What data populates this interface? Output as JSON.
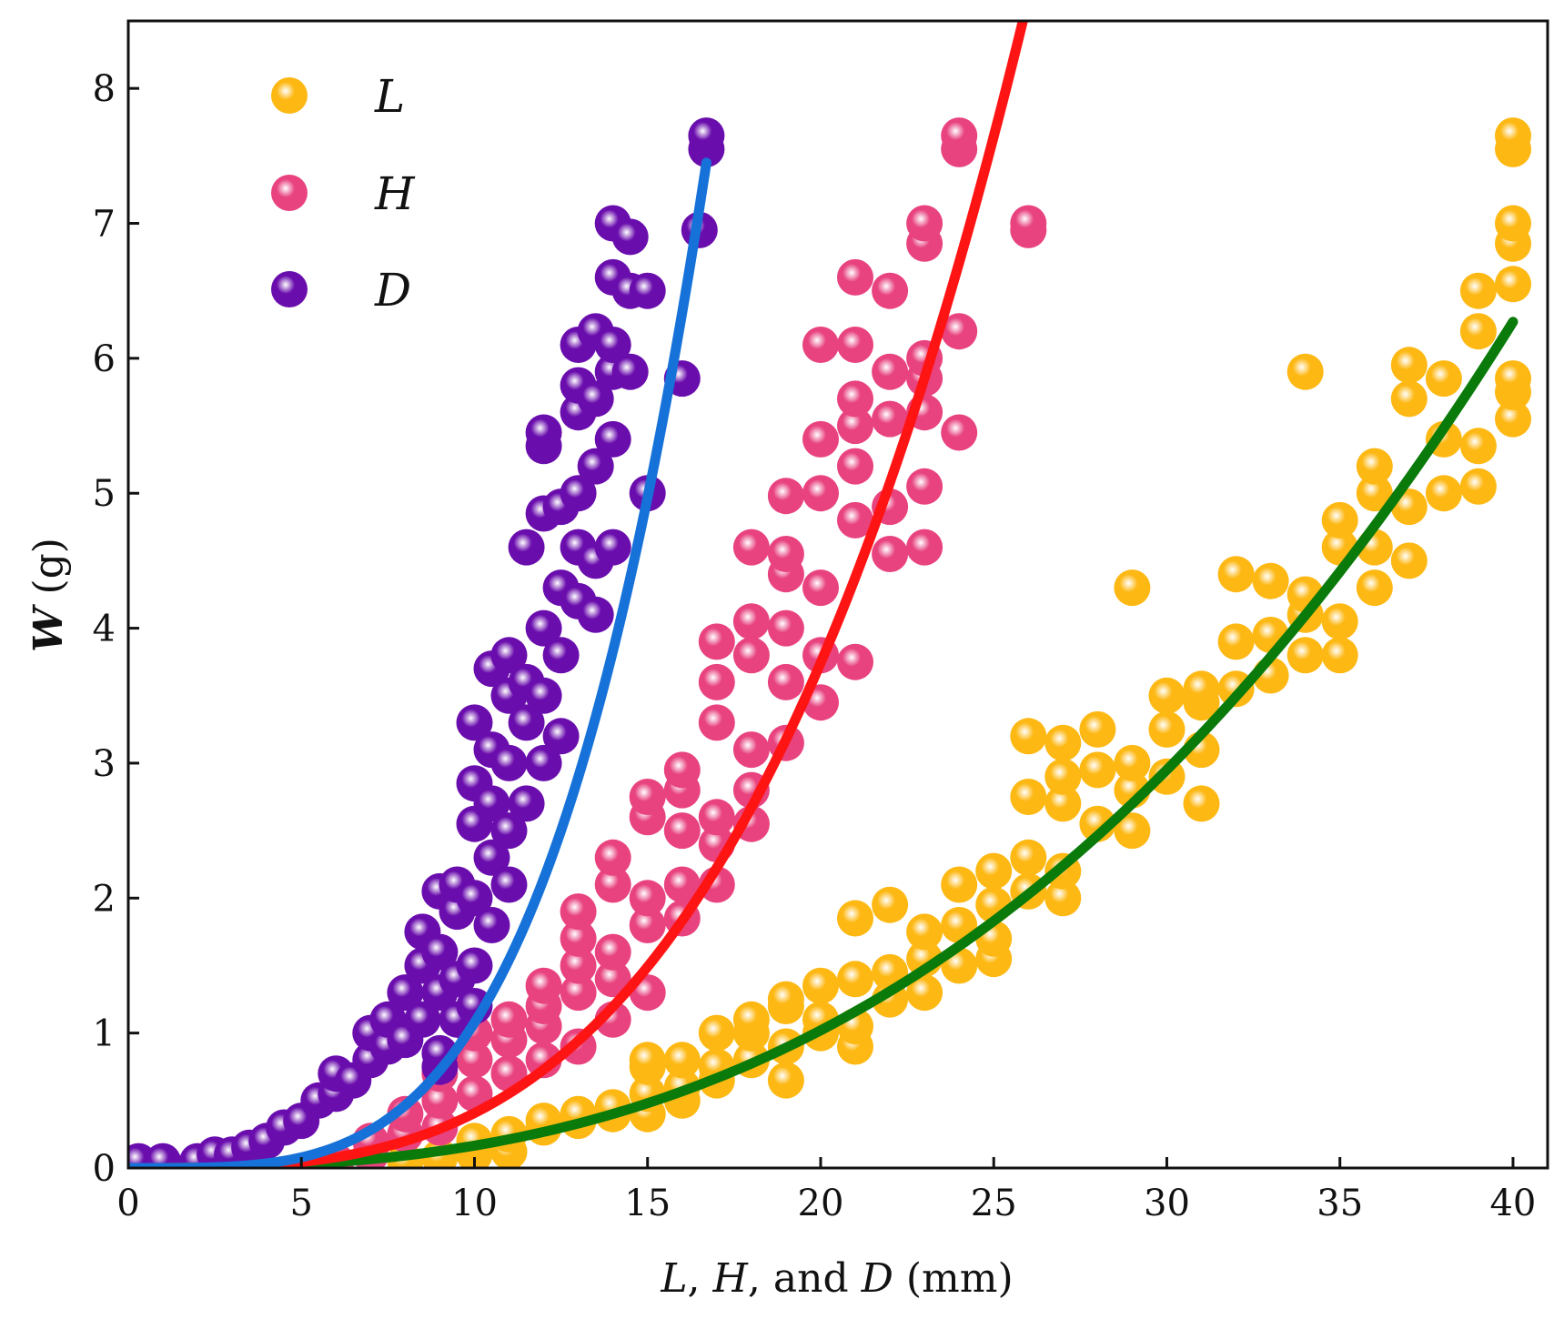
{
  "chart_data": {
    "type": "scatter",
    "title": "",
    "xlabel": {
      "parts": [
        {
          "text": "L",
          "italic": true
        },
        {
          "text": ", ",
          "italic": false
        },
        {
          "text": "H",
          "italic": true
        },
        {
          "text": ", and ",
          "italic": false
        },
        {
          "text": "D",
          "italic": true
        },
        {
          "text": " (mm)",
          "italic": false
        }
      ]
    },
    "ylabel": {
      "parts": [
        {
          "text": "W",
          "italic": true,
          "bold": true
        },
        {
          "text": " (g)",
          "italic": false,
          "bold": false
        }
      ]
    },
    "xlim": [
      0,
      41
    ],
    "ylim": [
      0,
      8.5
    ],
    "xticks": [
      0,
      5,
      10,
      15,
      20,
      25,
      30,
      35,
      40
    ],
    "yticks": [
      0,
      1,
      2,
      3,
      4,
      5,
      6,
      7,
      8
    ],
    "grid": false,
    "legend_position": "top-left",
    "series": [
      {
        "name": "L",
        "color": "#FDB813",
        "fit_color": "#0A7A0A",
        "fit_x_range": [
          0,
          40
        ],
        "fit_coefficient_a": 0.000398,
        "fit_exponent_b": 2.62,
        "points": [
          [
            8,
            0.05
          ],
          [
            9,
            0.08
          ],
          [
            10,
            0.1
          ],
          [
            10,
            0.2
          ],
          [
            11,
            0.12
          ],
          [
            11,
            0.25
          ],
          [
            12,
            0.3
          ],
          [
            12,
            0.35
          ],
          [
            13,
            0.35
          ],
          [
            13,
            0.4
          ],
          [
            14,
            0.4
          ],
          [
            14,
            0.45
          ],
          [
            15,
            0.4
          ],
          [
            15,
            0.55
          ],
          [
            15,
            0.75
          ],
          [
            15,
            0.8
          ],
          [
            16,
            0.5
          ],
          [
            16,
            0.6
          ],
          [
            16,
            0.8
          ],
          [
            17,
            0.65
          ],
          [
            17,
            0.75
          ],
          [
            17,
            1.0
          ],
          [
            18,
            0.8
          ],
          [
            18,
            1.0
          ],
          [
            18,
            1.1
          ],
          [
            19,
            0.65
          ],
          [
            19,
            0.9
          ],
          [
            19,
            1.2
          ],
          [
            19,
            1.25
          ],
          [
            20,
            1.0
          ],
          [
            20,
            1.1
          ],
          [
            20,
            1.35
          ],
          [
            21,
            0.9
          ],
          [
            21,
            1.05
          ],
          [
            21,
            1.4
          ],
          [
            21,
            1.85
          ],
          [
            22,
            1.25
          ],
          [
            22,
            1.45
          ],
          [
            22,
            1.95
          ],
          [
            23,
            1.3
          ],
          [
            23,
            1.55
          ],
          [
            23,
            1.75
          ],
          [
            24,
            1.5
          ],
          [
            24,
            1.8
          ],
          [
            24,
            2.1
          ],
          [
            25,
            1.55
          ],
          [
            25,
            1.7
          ],
          [
            25,
            1.95
          ],
          [
            25,
            2.2
          ],
          [
            26,
            2.05
          ],
          [
            26,
            2.3
          ],
          [
            26,
            2.75
          ],
          [
            26,
            3.2
          ],
          [
            27,
            2.0
          ],
          [
            27,
            2.2
          ],
          [
            27,
            2.7
          ],
          [
            27,
            2.9
          ],
          [
            27,
            3.15
          ],
          [
            28,
            2.55
          ],
          [
            28,
            2.95
          ],
          [
            28,
            3.25
          ],
          [
            29,
            2.5
          ],
          [
            29,
            2.8
          ],
          [
            29,
            3.0
          ],
          [
            29,
            4.3
          ],
          [
            30,
            2.9
          ],
          [
            30,
            3.25
          ],
          [
            30,
            3.5
          ],
          [
            31,
            2.7
          ],
          [
            31,
            3.1
          ],
          [
            31,
            3.45
          ],
          [
            31,
            3.55
          ],
          [
            32,
            3.55
          ],
          [
            32,
            3.9
          ],
          [
            32,
            4.4
          ],
          [
            33,
            3.65
          ],
          [
            33,
            3.95
          ],
          [
            33,
            4.35
          ],
          [
            34,
            3.8
          ],
          [
            34,
            4.1
          ],
          [
            34,
            4.25
          ],
          [
            34,
            5.9
          ],
          [
            35,
            3.8
          ],
          [
            35,
            4.05
          ],
          [
            35,
            4.6
          ],
          [
            35,
            4.8
          ],
          [
            36,
            4.3
          ],
          [
            36,
            4.6
          ],
          [
            36,
            5.0
          ],
          [
            36,
            5.2
          ],
          [
            37,
            4.5
          ],
          [
            37,
            4.9
          ],
          [
            37,
            5.7
          ],
          [
            37,
            5.95
          ],
          [
            38,
            5.0
          ],
          [
            38,
            5.4
          ],
          [
            38,
            5.85
          ],
          [
            39,
            5.05
          ],
          [
            39,
            5.35
          ],
          [
            39,
            6.2
          ],
          [
            39,
            6.5
          ],
          [
            40,
            5.55
          ],
          [
            40,
            5.75
          ],
          [
            40,
            5.85
          ],
          [
            40,
            6.55
          ],
          [
            40,
            6.85
          ],
          [
            40,
            7.0
          ],
          [
            40,
            7.55
          ],
          [
            40,
            7.65
          ]
        ]
      },
      {
        "name": "H",
        "color": "#E8437F",
        "fit_color": "#FF1414",
        "fit_x_range": [
          0.5,
          26
        ],
        "fit_coefficient_a": 0.000257,
        "fit_exponent_b": 3.2,
        "points": [
          [
            6,
            0.05
          ],
          [
            7,
            0.1
          ],
          [
            7,
            0.2
          ],
          [
            8,
            0.25
          ],
          [
            8,
            0.4
          ],
          [
            9,
            0.3
          ],
          [
            9,
            0.5
          ],
          [
            9,
            0.7
          ],
          [
            10,
            0.55
          ],
          [
            10,
            0.8
          ],
          [
            10,
            1.0
          ],
          [
            11,
            0.7
          ],
          [
            11,
            0.95
          ],
          [
            11,
            1.1
          ],
          [
            12,
            0.8
          ],
          [
            12,
            1.05
          ],
          [
            12,
            1.2
          ],
          [
            12,
            1.35
          ],
          [
            13,
            0.9
          ],
          [
            13,
            1.3
          ],
          [
            13,
            1.5
          ],
          [
            13,
            1.7
          ],
          [
            13,
            1.9
          ],
          [
            14,
            1.1
          ],
          [
            14,
            1.4
          ],
          [
            14,
            1.6
          ],
          [
            14,
            2.1
          ],
          [
            14,
            2.3
          ],
          [
            15,
            1.3
          ],
          [
            15,
            1.8
          ],
          [
            15,
            2.0
          ],
          [
            15,
            2.6
          ],
          [
            15,
            2.75
          ],
          [
            16,
            1.85
          ],
          [
            16,
            2.1
          ],
          [
            16,
            2.5
          ],
          [
            16,
            2.8
          ],
          [
            16,
            2.95
          ],
          [
            17,
            2.1
          ],
          [
            17,
            2.4
          ],
          [
            17,
            2.6
          ],
          [
            17,
            3.3
          ],
          [
            17,
            3.6
          ],
          [
            17,
            3.9
          ],
          [
            18,
            2.55
          ],
          [
            18,
            2.8
          ],
          [
            18,
            3.1
          ],
          [
            18,
            3.8
          ],
          [
            18,
            4.05
          ],
          [
            18,
            4.6
          ],
          [
            19,
            3.15
          ],
          [
            19,
            3.6
          ],
          [
            19,
            4.0
          ],
          [
            19,
            4.4
          ],
          [
            19,
            4.55
          ],
          [
            19,
            4.98
          ],
          [
            20,
            3.45
          ],
          [
            20,
            3.8
          ],
          [
            20,
            4.3
          ],
          [
            20,
            5.0
          ],
          [
            20,
            5.4
          ],
          [
            20,
            6.1
          ],
          [
            21,
            3.75
          ],
          [
            21,
            4.8
          ],
          [
            21,
            5.2
          ],
          [
            21,
            5.5
          ],
          [
            21,
            5.7
          ],
          [
            21,
            6.1
          ],
          [
            21,
            6.6
          ],
          [
            22,
            4.55
          ],
          [
            22,
            4.9
          ],
          [
            22,
            5.55
          ],
          [
            22,
            5.9
          ],
          [
            22,
            6.5
          ],
          [
            23,
            4.6
          ],
          [
            23,
            5.05
          ],
          [
            23,
            5.6
          ],
          [
            23,
            5.85
          ],
          [
            23,
            6.0
          ],
          [
            23,
            6.85
          ],
          [
            23,
            7.0
          ],
          [
            24,
            5.45
          ],
          [
            24,
            6.2
          ],
          [
            24,
            7.55
          ],
          [
            24,
            7.65
          ],
          [
            26,
            6.95
          ],
          [
            26,
            7.0
          ]
        ]
      },
      {
        "name": "D",
        "color": "#6A0DAD",
        "fit_color": "#1672D8",
        "fit_x_range": [
          0,
          16.7
        ],
        "fit_coefficient_a": 0.000183,
        "fit_exponent_b": 3.77,
        "points": [
          [
            0.3,
            0.05
          ],
          [
            1,
            0.05
          ],
          [
            2,
            0.05
          ],
          [
            2.5,
            0.1
          ],
          [
            3,
            0.1
          ],
          [
            3.5,
            0.15
          ],
          [
            4,
            0.2
          ],
          [
            4.5,
            0.3
          ],
          [
            5,
            0.35
          ],
          [
            5.5,
            0.5
          ],
          [
            6,
            0.55
          ],
          [
            6,
            0.7
          ],
          [
            6.5,
            0.65
          ],
          [
            7,
            0.8
          ],
          [
            7,
            1.0
          ],
          [
            7.5,
            0.9
          ],
          [
            7.5,
            1.1
          ],
          [
            8,
            0.95
          ],
          [
            8,
            1.3
          ],
          [
            8.5,
            1.1
          ],
          [
            8.5,
            1.5
          ],
          [
            8.5,
            1.75
          ],
          [
            9,
            0.75
          ],
          [
            9,
            0.85
          ],
          [
            9,
            1.3
          ],
          [
            9,
            1.6
          ],
          [
            9,
            2.05
          ],
          [
            9.5,
            1.1
          ],
          [
            9.5,
            1.4
          ],
          [
            9.5,
            1.9
          ],
          [
            9.5,
            2.1
          ],
          [
            10,
            1.2
          ],
          [
            10,
            1.5
          ],
          [
            10,
            2.0
          ],
          [
            10,
            2.55
          ],
          [
            10,
            2.85
          ],
          [
            10,
            3.3
          ],
          [
            10.5,
            1.8
          ],
          [
            10.5,
            2.3
          ],
          [
            10.5,
            2.7
          ],
          [
            10.5,
            3.1
          ],
          [
            10.5,
            3.7
          ],
          [
            11,
            2.1
          ],
          [
            11,
            2.5
          ],
          [
            11,
            3.0
          ],
          [
            11,
            3.5
          ],
          [
            11,
            3.8
          ],
          [
            11.5,
            2.7
          ],
          [
            11.5,
            3.3
          ],
          [
            11.5,
            3.6
          ],
          [
            11.5,
            4.6
          ],
          [
            12,
            3.0
          ],
          [
            12,
            3.5
          ],
          [
            12,
            4.0
          ],
          [
            12,
            4.85
          ],
          [
            12,
            5.35
          ],
          [
            12,
            5.45
          ],
          [
            12.5,
            3.2
          ],
          [
            12.5,
            3.8
          ],
          [
            12.5,
            4.3
          ],
          [
            12.5,
            4.9
          ],
          [
            13,
            4.2
          ],
          [
            13,
            4.6
          ],
          [
            13,
            5.0
          ],
          [
            13,
            5.6
          ],
          [
            13,
            5.8
          ],
          [
            13,
            6.1
          ],
          [
            13.5,
            4.1
          ],
          [
            13.5,
            4.5
          ],
          [
            13.5,
            5.2
          ],
          [
            13.5,
            5.7
          ],
          [
            13.5,
            6.2
          ],
          [
            14,
            4.6
          ],
          [
            14,
            5.4
          ],
          [
            14,
            5.9
          ],
          [
            14,
            6.1
          ],
          [
            14,
            6.6
          ],
          [
            14,
            7.0
          ],
          [
            14.5,
            5.9
          ],
          [
            14.5,
            6.5
          ],
          [
            14.5,
            6.9
          ],
          [
            15,
            5.0
          ],
          [
            15,
            6.5
          ],
          [
            16,
            5.85
          ],
          [
            16.5,
            6.95
          ],
          [
            16.7,
            7.55
          ],
          [
            16.7,
            7.65
          ]
        ]
      }
    ]
  }
}
